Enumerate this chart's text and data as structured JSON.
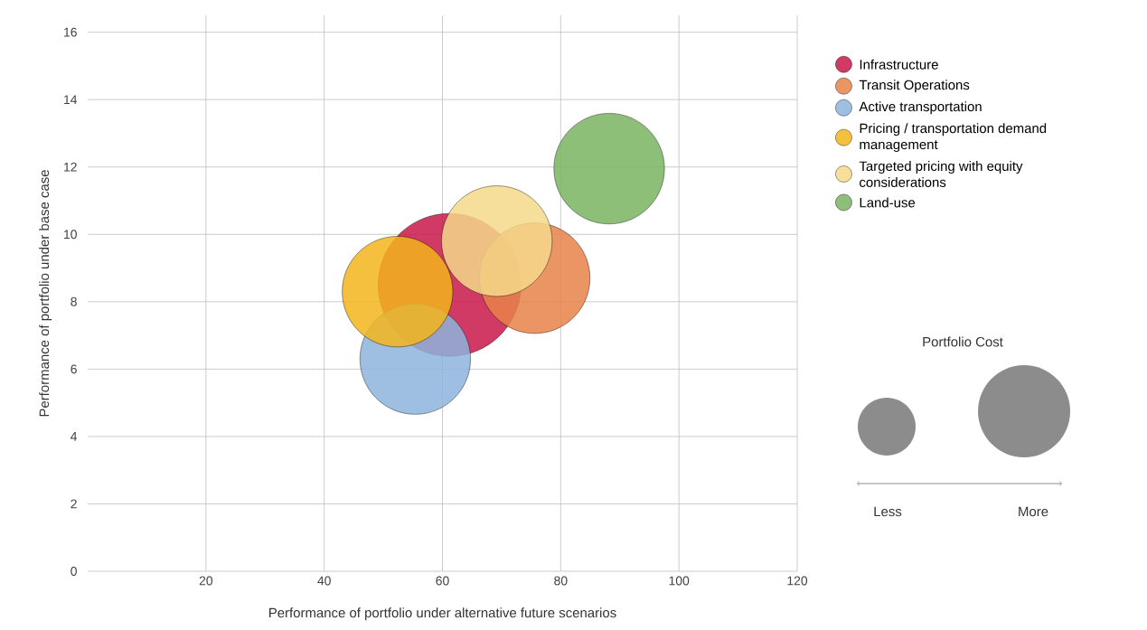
{
  "chart_data": {
    "type": "bubble",
    "xlabel": "Performance of portfolio under alternative future scenarios",
    "ylabel": "Performance of portfolio under base case",
    "xlim": [
      0,
      120
    ],
    "ylim": [
      0,
      16.5
    ],
    "xticks": [
      20,
      40,
      60,
      80,
      100,
      120
    ],
    "yticks": [
      0,
      2,
      4,
      6,
      8,
      10,
      12,
      14,
      16
    ],
    "grid": true,
    "legend": "right",
    "series": [
      {
        "name": "Infrastructure",
        "color": "#c8174a",
        "x": [
          61.2
        ],
        "values": [
          8.5
        ],
        "sizes": [
          1
        ]
      },
      {
        "name": "Transit Operations",
        "color": "#e8834a",
        "x": [
          75.6
        ],
        "values": [
          8.7
        ],
        "sizes": [
          0.6
        ]
      },
      {
        "name": "Active transportation",
        "color": "#8db4dc",
        "x": [
          55.4
        ],
        "values": [
          6.3
        ],
        "sizes": [
          0.6
        ]
      },
      {
        "name": "Pricing / transportation demand management",
        "color": "#f2b51c",
        "x": [
          52.4
        ],
        "values": [
          8.3
        ],
        "sizes": [
          0.6
        ]
      },
      {
        "name": "Targeted pricing with equity considerations",
        "color": "#f5d88a",
        "x": [
          69.2
        ],
        "values": [
          9.8
        ],
        "sizes": [
          0.6
        ]
      },
      {
        "name": "Land-use",
        "color": "#7ab462",
        "x": [
          88.2
        ],
        "values": [
          11.95
        ],
        "sizes": [
          0.6
        ]
      }
    ],
    "annotations": [
      "Portfolio Cost",
      "Less",
      "More"
    ]
  }
}
